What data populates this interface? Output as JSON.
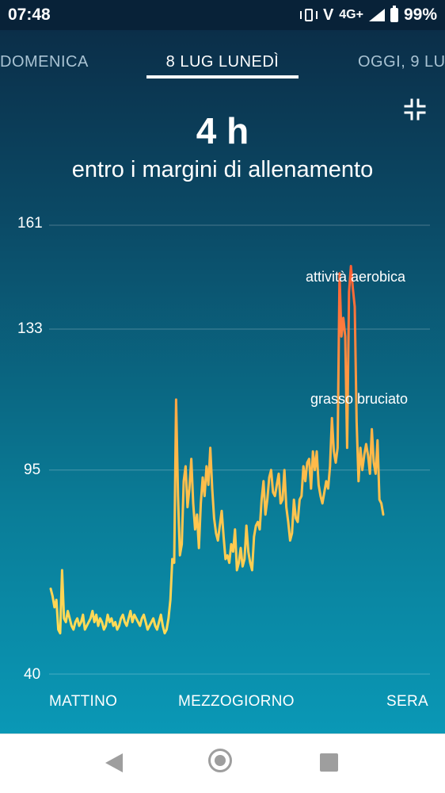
{
  "status_bar": {
    "time": "07:48",
    "network": "4G+",
    "battery": "99%",
    "icons": [
      "vibrate-icon",
      "volte-icon",
      "signal-icon",
      "battery-icon"
    ]
  },
  "tabs": [
    {
      "label": "DOMENICA",
      "active": false
    },
    {
      "label": "8 LUG LUNEDÌ",
      "active": true
    },
    {
      "label": "OGGI, 9 LU",
      "active": false
    }
  ],
  "summary": {
    "value": "4 h",
    "label": "entro i margini di allenamento"
  },
  "chart_data": {
    "type": "line",
    "yticks": [
      "161",
      "133",
      "95",
      "40"
    ],
    "ylim": [
      40,
      161
    ],
    "xlabels": [
      "MATTINO",
      "MEZZOGIORNO",
      "SERA"
    ],
    "zones": [
      {
        "name": "attività aerobica",
        "threshold": 133,
        "color": "#ff6a3d"
      },
      {
        "name": "grasso bruciato",
        "threshold": 95,
        "color": "#ffb347"
      }
    ],
    "grid": true,
    "series": [
      {
        "values": [
          63,
          61,
          58,
          60,
          52,
          51,
          68,
          55,
          54,
          57,
          55,
          53,
          52,
          54,
          55,
          53,
          54,
          56,
          52,
          53,
          54,
          55,
          57,
          54,
          56,
          53,
          55,
          54,
          52,
          53,
          56,
          54,
          55,
          53,
          54,
          52,
          53,
          55,
          56,
          54,
          53,
          55,
          57,
          54,
          56,
          55,
          54,
          53,
          55,
          56,
          54,
          52,
          53,
          54,
          55,
          53,
          52,
          54,
          56,
          53,
          51,
          52,
          55,
          60,
          71,
          70,
          114,
          88,
          72,
          75,
          92,
          96,
          85,
          90,
          98,
          86,
          79,
          83,
          74,
          86,
          93,
          88,
          96,
          91,
          101,
          90,
          82,
          78,
          76,
          80,
          84,
          77,
          71,
          72,
          70,
          75,
          73,
          79,
          68,
          70,
          74,
          69,
          71,
          80,
          73,
          70,
          68,
          77,
          80,
          81,
          79,
          87,
          92,
          83,
          87,
          93,
          95,
          89,
          88,
          91,
          94,
          86,
          87,
          95,
          85,
          81,
          76,
          78,
          87,
          82,
          81,
          87,
          88,
          96,
          92,
          97,
          98,
          90,
          100,
          95,
          100,
          91,
          88,
          86,
          89,
          92,
          90,
          96,
          109,
          100,
          97,
          101,
          148,
          131,
          136,
          131,
          101,
          143,
          150,
          144,
          139,
          108,
          92,
          101,
          95,
          99,
          102,
          99,
          94,
          106,
          97,
          94,
          103,
          87,
          86,
          83
        ]
      }
    ]
  },
  "nav": {
    "back": "back-icon",
    "home": "home-icon",
    "recent": "recent-apps-icon"
  }
}
